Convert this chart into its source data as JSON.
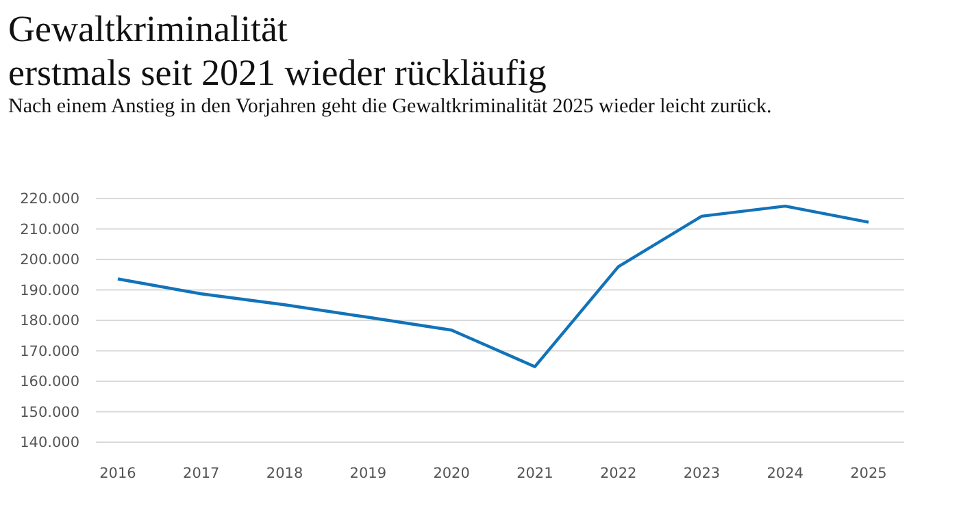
{
  "chart_data": {
    "type": "line",
    "title": "Gewaltkriminalität\nerstmals seit 2021 wieder rückläufig",
    "subtitle": "Nach einem Anstieg in den Vorjahren geht die Gewaltkriminalität 2025 wieder leicht zurück.",
    "categories": [
      "2016",
      "2017",
      "2018",
      "2019",
      "2020",
      "2021",
      "2022",
      "2023",
      "2024",
      "2025"
    ],
    "series": [
      {
        "color": "#1273b9",
        "values": [
          193600,
          188700,
          185100,
          181000,
          176800,
          164800,
          197600,
          214200,
          217500,
          212200
        ]
      }
    ],
    "ylim": [
      140000,
      220000
    ],
    "yticks": [
      {
        "value": 140000,
        "label": "140.000"
      },
      {
        "value": 150000,
        "label": "150.000"
      },
      {
        "value": 160000,
        "label": "160.000"
      },
      {
        "value": 170000,
        "label": "170.000"
      },
      {
        "value": 180000,
        "label": "180.000"
      },
      {
        "value": 190000,
        "label": "190.000"
      },
      {
        "value": 200000,
        "label": "200.000"
      },
      {
        "value": 210000,
        "label": "210.000"
      },
      {
        "value": 220000,
        "label": "220.000"
      }
    ],
    "grid": "y",
    "marker": "none",
    "line_style": "solid"
  }
}
